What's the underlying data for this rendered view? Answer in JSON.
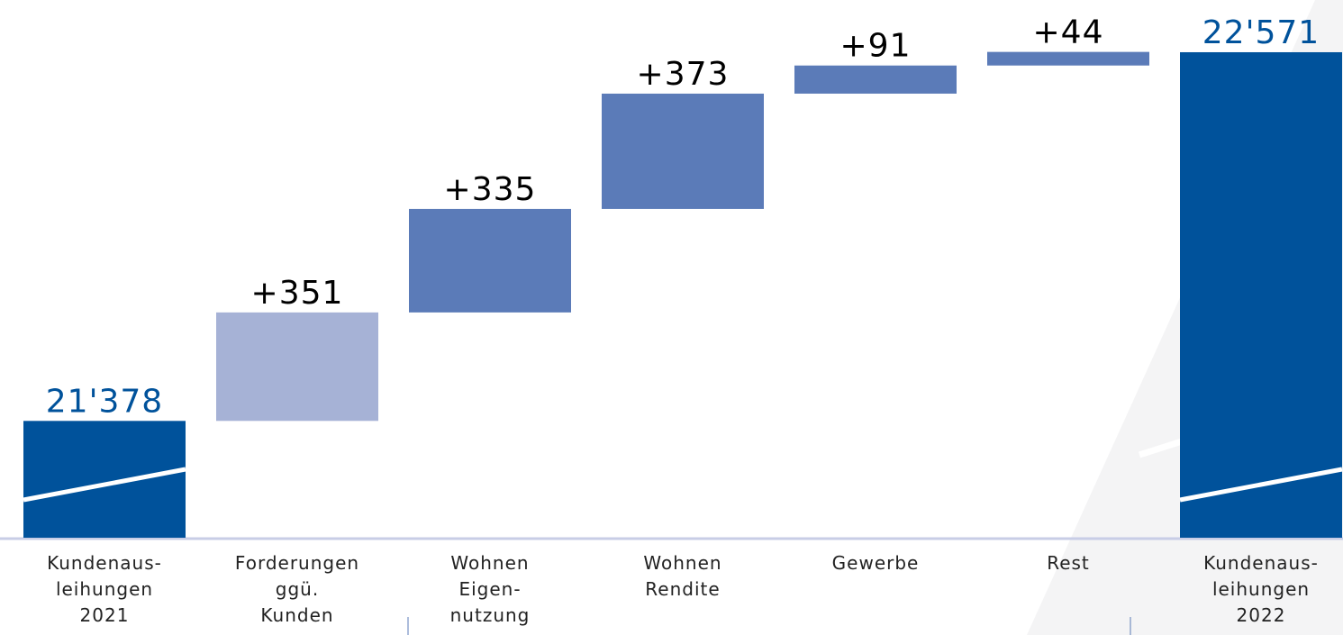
{
  "chart_data": {
    "type": "waterfall",
    "categories": [
      [
        "Kundenaus-",
        "leihungen",
        "2021"
      ],
      [
        "Forderungen",
        "ggü.",
        "Kunden"
      ],
      [
        "Wohnen",
        "Eigen-",
        "nutzung"
      ],
      [
        "Wohnen",
        "Rendite"
      ],
      [
        "Gewerbe"
      ],
      [
        "Rest"
      ],
      [
        "Kundenaus-",
        "leihungen",
        "2022"
      ]
    ],
    "values": [
      21378,
      351,
      335,
      373,
      91,
      44,
      22571
    ],
    "value_labels": [
      "21'378",
      "+351",
      "+335",
      "+373",
      "+91",
      "+44",
      "22'571"
    ],
    "colors": [
      "#00529b",
      "#a6b2d6",
      "#5b7bb8",
      "#5b7bb8",
      "#5b7bb8",
      "#5b7bb8",
      "#00529b"
    ],
    "ylim": [
      21000,
      22740
    ]
  }
}
